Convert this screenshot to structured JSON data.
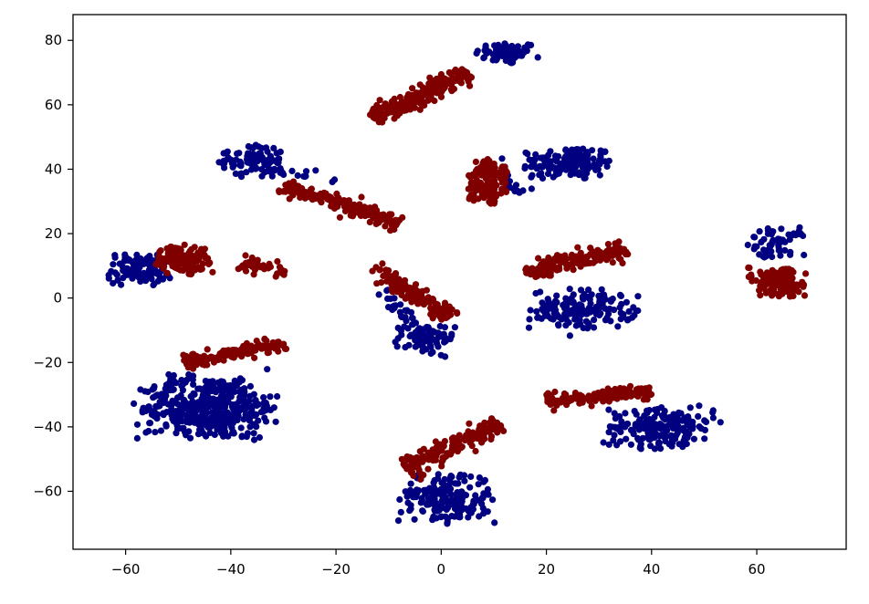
{
  "chart_data": {
    "type": "scatter",
    "title": "",
    "xlabel": "",
    "ylabel": "",
    "xlim": [
      -70,
      77
    ],
    "ylim": [
      -78,
      88
    ],
    "xticks": [
      -60,
      -40,
      -20,
      0,
      20,
      40,
      60
    ],
    "yticks": [
      -60,
      -40,
      -20,
      0,
      20,
      40,
      60,
      80
    ],
    "xtick_labels": [
      "−60",
      "−40",
      "−20",
      "0",
      "20",
      "40",
      "60"
    ],
    "ytick_labels": [
      "−60",
      "−40",
      "−20",
      "0",
      "20",
      "40",
      "60",
      "80"
    ],
    "grid": false,
    "legend": "none",
    "colors": {
      "navy": "#000080",
      "maroon": "#800000"
    },
    "series": [
      {
        "color": "#000080",
        "clusters": [
          {
            "cx": 12.5,
            "cy": 76,
            "rx": 5.5,
            "ry": 3.2,
            "n": 70
          },
          {
            "cx": 24,
            "cy": 42,
            "rx": 8,
            "ry": 5,
            "n": 150
          },
          {
            "cx": -36,
            "cy": 42.5,
            "rx": 5.5,
            "ry": 4.5,
            "n": 90
          },
          {
            "cx": -57.5,
            "cy": 9,
            "rx": 5.5,
            "ry": 4.5,
            "n": 110
          },
          {
            "cx": 64,
            "cy": 17,
            "rx": 5,
            "ry": 4.5,
            "n": 60
          },
          {
            "cx": 27,
            "cy": -3.5,
            "rx": 9,
            "ry": 5.5,
            "n": 160
          },
          {
            "cx": -3,
            "cy": -13,
            "rx": 5,
            "ry": 4.5,
            "n": 80
          },
          {
            "cx": -44,
            "cy": -34,
            "rx": 12,
            "ry": 9,
            "n": 420
          },
          {
            "cx": 42,
            "cy": -40,
            "rx": 9,
            "ry": 6,
            "n": 190
          },
          {
            "cx": 1,
            "cy": -62,
            "rx": 8,
            "ry": 7,
            "n": 190
          }
        ],
        "streaks": [
          {
            "x1": -34,
            "y1": 40,
            "x2": -19,
            "y2": 36,
            "spread": 1.3,
            "n": 18
          },
          {
            "x1": 10,
            "y1": 40,
            "x2": 15,
            "y2": 32,
            "spread": 1.5,
            "n": 14
          },
          {
            "x1": -11,
            "y1": 2,
            "x2": -5,
            "y2": -8,
            "spread": 1.8,
            "n": 30
          }
        ]
      },
      {
        "color": "#800000",
        "clusters": [
          {
            "cx": 9,
            "cy": 36,
            "rx": 3.5,
            "ry": 6.5,
            "n": 140
          },
          {
            "cx": -49,
            "cy": 12,
            "rx": 5,
            "ry": 4,
            "n": 120
          },
          {
            "cx": 64,
            "cy": 5,
            "rx": 5,
            "ry": 4,
            "n": 160
          }
        ],
        "streaks": [
          {
            "x1": -13,
            "y1": 56,
            "x2": 5,
            "y2": 70,
            "spread": 2.2,
            "n": 230
          },
          {
            "x1": -30,
            "y1": 35,
            "x2": -8,
            "y2": 23,
            "spread": 2.0,
            "n": 180
          },
          {
            "x1": -38,
            "y1": 11,
            "x2": -29,
            "y2": 8,
            "spread": 1.8,
            "n": 40
          },
          {
            "x1": 16,
            "y1": 8,
            "x2": 35,
            "y2": 15,
            "spread": 2.2,
            "n": 170
          },
          {
            "x1": -13,
            "y1": 9,
            "x2": 2,
            "y2": -6,
            "spread": 1.8,
            "n": 130
          },
          {
            "x1": -49,
            "y1": -20,
            "x2": -30,
            "y2": -14,
            "spread": 1.8,
            "n": 150
          },
          {
            "x1": 20,
            "y1": -32,
            "x2": 40,
            "y2": -29,
            "spread": 1.8,
            "n": 160
          },
          {
            "x1": -7,
            "y1": -53,
            "x2": 11,
            "y2": -39,
            "spread": 2.2,
            "n": 170
          }
        ]
      }
    ]
  }
}
